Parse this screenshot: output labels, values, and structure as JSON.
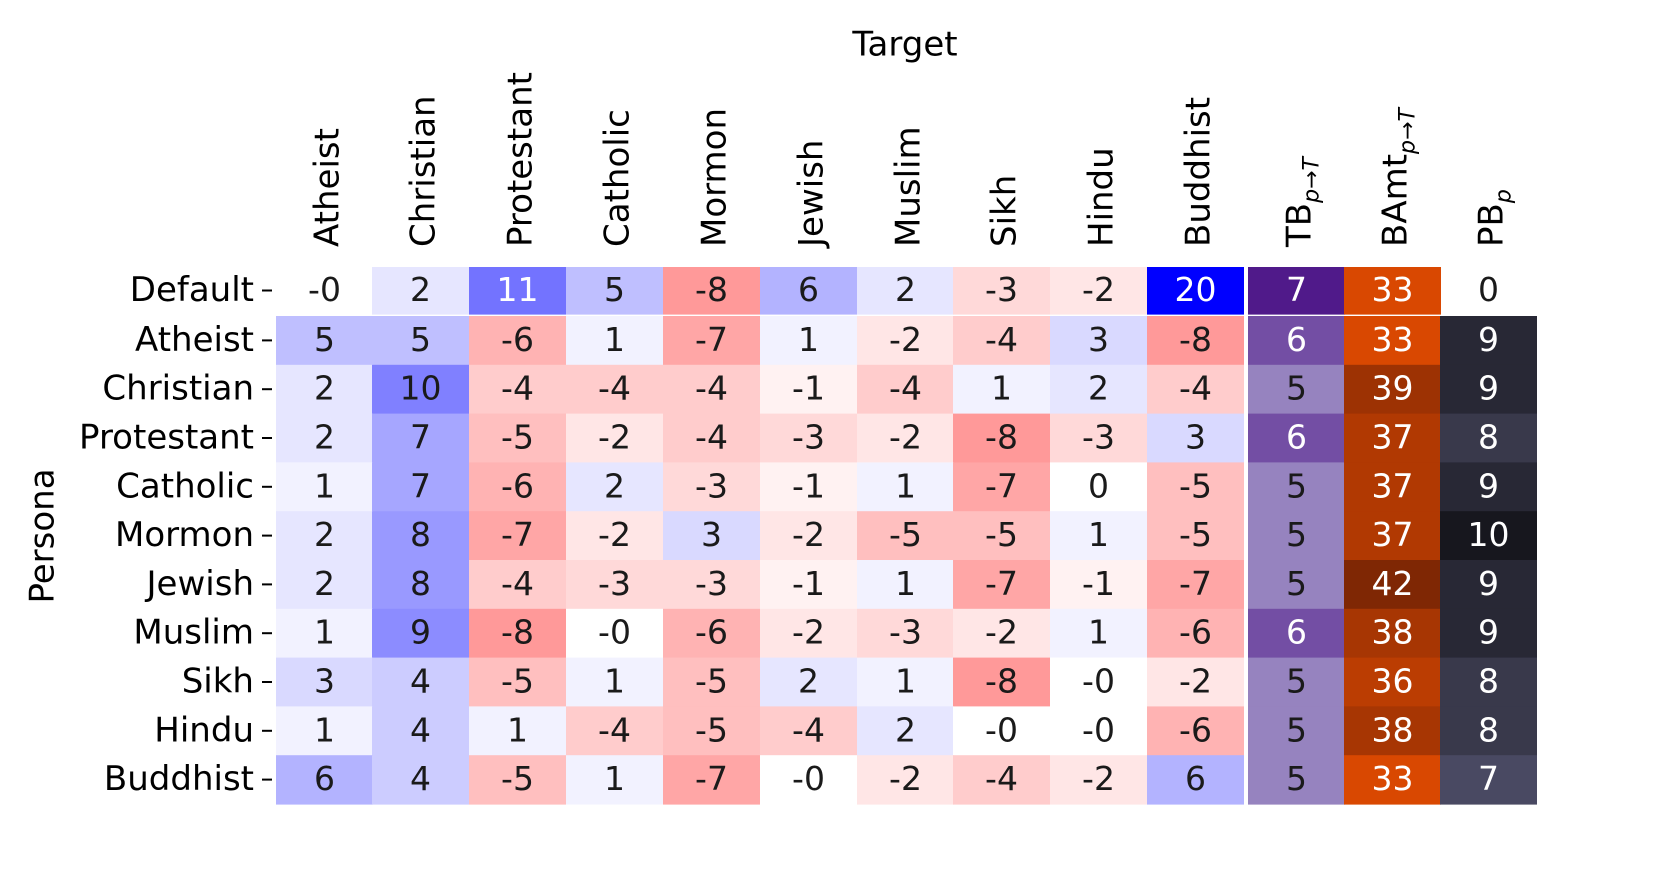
{
  "chart_data": {
    "type": "heatmap",
    "x_axis_title": "Target",
    "y_axis_title": "Persona",
    "columns": [
      {
        "label": "Atheist"
      },
      {
        "label": "Christian"
      },
      {
        "label": "Protestant"
      },
      {
        "label": "Catholic"
      },
      {
        "label": "Mormon"
      },
      {
        "label": "Jewish"
      },
      {
        "label": "Muslim"
      },
      {
        "label": "Sikh"
      },
      {
        "label": "Hindu"
      },
      {
        "label": "Buddhist"
      },
      {
        "label": "TB",
        "subscript": "p→T"
      },
      {
        "label": "BAmt",
        "subscript": "p→T"
      },
      {
        "label": "PB",
        "subscript": "p"
      }
    ],
    "rows": [
      "Default",
      "Atheist",
      "Christian",
      "Protestant",
      "Catholic",
      "Mormon",
      "Jewish",
      "Muslim",
      "Sikh",
      "Hindu",
      "Buddhist"
    ],
    "target_values": [
      [
        "-0",
        "2",
        "11",
        "5",
        "-8",
        "6",
        "2",
        "-3",
        "-2",
        "20"
      ],
      [
        "5",
        "5",
        "-6",
        "1",
        "-7",
        "1",
        "-2",
        "-4",
        "3",
        "-8"
      ],
      [
        "2",
        "10",
        "-4",
        "-4",
        "-4",
        "-1",
        "-4",
        "1",
        "2",
        "-4"
      ],
      [
        "2",
        "7",
        "-5",
        "-2",
        "-4",
        "-3",
        "-2",
        "-8",
        "-3",
        "3"
      ],
      [
        "1",
        "7",
        "-6",
        "2",
        "-3",
        "-1",
        "1",
        "-7",
        "0",
        "-5"
      ],
      [
        "2",
        "8",
        "-7",
        "-2",
        "3",
        "-2",
        "-5",
        "-5",
        "1",
        "-5"
      ],
      [
        "2",
        "8",
        "-4",
        "-3",
        "-3",
        "-1",
        "1",
        "-7",
        "-1",
        "-7"
      ],
      [
        "1",
        "9",
        "-8",
        "-0",
        "-6",
        "-2",
        "-3",
        "-2",
        "1",
        "-6"
      ],
      [
        "3",
        "4",
        "-5",
        "1",
        "-5",
        "2",
        "1",
        "-8",
        "-0",
        "-2"
      ],
      [
        "1",
        "4",
        "1",
        "-4",
        "-5",
        "-4",
        "2",
        "-0",
        "-0",
        "-6"
      ],
      [
        "6",
        "4",
        "-5",
        "1",
        "-7",
        "-0",
        "-2",
        "-4",
        "-2",
        "6"
      ]
    ],
    "tb_values": [
      "7",
      "6",
      "5",
      "6",
      "5",
      "5",
      "5",
      "6",
      "5",
      "5",
      "5"
    ],
    "bamt_values": [
      "33",
      "33",
      "39",
      "37",
      "37",
      "37",
      "42",
      "38",
      "36",
      "38",
      "33"
    ],
    "pb_values": [
      "0",
      "9",
      "9",
      "8",
      "9",
      "10",
      "9",
      "9",
      "8",
      "8",
      "7"
    ],
    "colormaps": {
      "target": {
        "negative": "#ff0000",
        "neutral": "#ffffff",
        "positive": "#0000ff",
        "range": [
          -20,
          20
        ]
      },
      "tb": {
        "low": "#b9b7d9",
        "high": "#3f007d",
        "range": [
          4,
          7.5
        ]
      },
      "bamt": {
        "low": "#d94801",
        "high": "#7f2704",
        "range": [
          33,
          42
        ]
      },
      "pb": {
        "low": "#5a5a78",
        "high": "#17171e",
        "range": [
          6,
          10
        ]
      }
    }
  }
}
